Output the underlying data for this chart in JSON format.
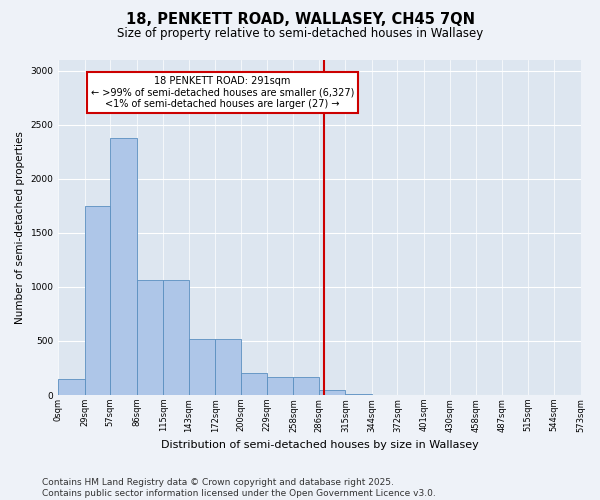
{
  "title_line1": "18, PENKETT ROAD, WALLASEY, CH45 7QN",
  "title_line2": "Size of property relative to semi-detached houses in Wallasey",
  "xlabel": "Distribution of semi-detached houses by size in Wallasey",
  "ylabel": "Number of semi-detached properties",
  "property_size": 291,
  "property_label": "18 PENKETT ROAD: 291sqm",
  "annotation_line2": "← >99% of semi-detached houses are smaller (6,327)",
  "annotation_line3": "<1% of semi-detached houses are larger (27) →",
  "bar_color": "#aec6e8",
  "bar_edge_color": "#5a8fc0",
  "vline_color": "#cc0000",
  "annotation_box_color": "#cc0000",
  "background_color": "#dde6f0",
  "fig_background_color": "#eef2f8",
  "bin_edges": [
    0,
    29,
    57,
    86,
    115,
    143,
    172,
    200,
    229,
    258,
    286,
    315,
    344,
    372,
    401,
    430,
    458,
    487,
    515,
    544,
    573
  ],
  "bar_heights": [
    150,
    1750,
    2380,
    1060,
    1060,
    520,
    520,
    200,
    170,
    170,
    50,
    10,
    0,
    0,
    0,
    0,
    0,
    0,
    0,
    0
  ],
  "ylim": [
    0,
    3100
  ],
  "yticks": [
    0,
    500,
    1000,
    1500,
    2000,
    2500,
    3000
  ],
  "footnote": "Contains HM Land Registry data © Crown copyright and database right 2025.\nContains public sector information licensed under the Open Government Licence v3.0.",
  "footnote_fontsize": 6.5,
  "title1_fontsize": 10.5,
  "title2_fontsize": 8.5,
  "ylabel_fontsize": 7.5,
  "xlabel_fontsize": 8,
  "tick_fontsize": 6,
  "annot_fontsize": 7
}
